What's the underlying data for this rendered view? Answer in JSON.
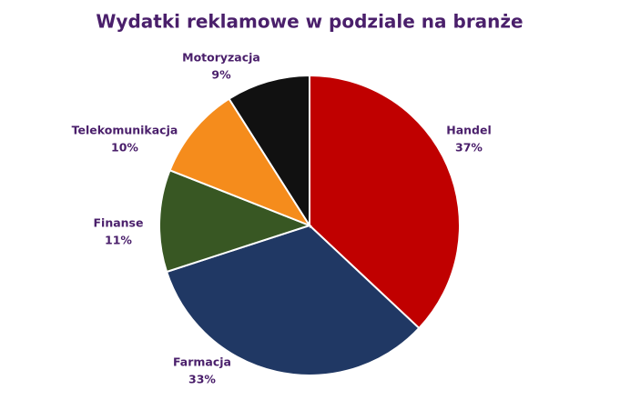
{
  "chart_data": {
    "type": "pie",
    "title": "Wydatki reklamowe w podziale na branże",
    "categories": [
      "Handel",
      "Farmacja",
      "Finanse",
      "Telekomunikacja",
      "Motoryzacja"
    ],
    "values": [
      37,
      33,
      11,
      10,
      9
    ],
    "value_labels": [
      "37%",
      "33%",
      "11%",
      "10%",
      "9%"
    ],
    "colors": [
      "#c00000",
      "#203864",
      "#385723",
      "#f58c1c",
      "#111111"
    ]
  }
}
